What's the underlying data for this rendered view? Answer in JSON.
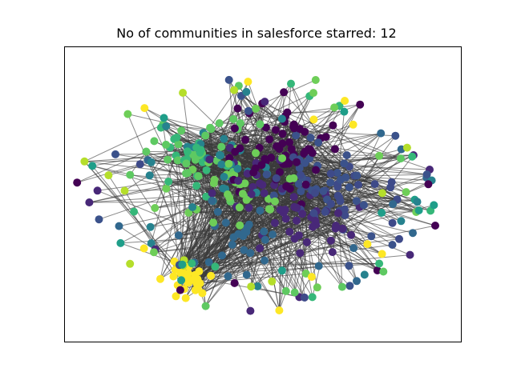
{
  "figure": {
    "title": "No of communities in salesforce starred: 12"
  },
  "graph": {
    "node_count_shown": "approx. 450",
    "edge_color": "#3a3a3a",
    "community_palette": [
      "#440154",
      "#482878",
      "#3e4a89",
      "#31688e",
      "#26828e",
      "#1f9e89",
      "#35b779",
      "#6ece58",
      "#b5de2b",
      "#fde725",
      "#3b528b",
      "#5ec962"
    ]
  }
}
